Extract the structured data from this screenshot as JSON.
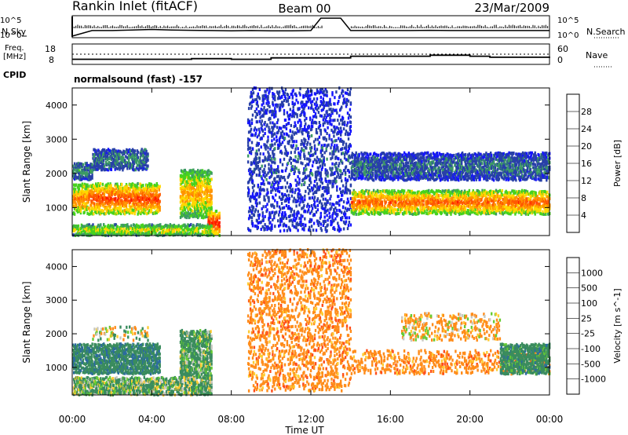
{
  "header": {
    "station": "Rankin Inlet (fitACF)",
    "beam": "Beam 00",
    "date": "23/Mar/2009"
  },
  "strips": {
    "nsky": {
      "label": "N.Sky",
      "top": "10^5",
      "bottom": "10^0"
    },
    "nsearch": {
      "label": "N.Search",
      "top": "10^5",
      "bottom": "10^0"
    },
    "freq": {
      "label1": "Freq.",
      "label2": "[MHz]",
      "top": "18",
      "bottom": "8"
    },
    "nave": {
      "label": "Nave",
      "top": "60",
      "bottom": "0"
    },
    "cpid": {
      "label": "CPID",
      "value": "normalsound (fast) -157"
    }
  },
  "axes": {
    "ylabel": "Slant Range [km]",
    "yticks": [
      "1000",
      "2000",
      "3000",
      "4000"
    ],
    "xticks": [
      "00:00",
      "04:00",
      "08:00",
      "12:00",
      "16:00",
      "20:00",
      "00:00"
    ],
    "xlabel": "Time UT"
  },
  "colorbars": {
    "power": {
      "label": "Power [dB]",
      "labels": [
        "28",
        "24",
        "20",
        "16",
        "12",
        "8",
        "4"
      ],
      "colors": [
        "#ff1a00",
        "#ff5a00",
        "#ff9400",
        "#ffd800",
        "#46d21e",
        "#3c9a64",
        "#2840a8",
        "#1414ff"
      ]
    },
    "velocity": {
      "label": "Velocity [m s^-1]",
      "labels": [
        "1000",
        "500",
        "100",
        "25",
        "-25",
        "-100",
        "-500",
        "-1000"
      ],
      "colors": [
        "#1e3cc8",
        "#2b6aa0",
        "#3a8c5e",
        "#66cc33",
        "#c8c8c0",
        "#ffcc33",
        "#ff8c1a",
        "#ff4d1a",
        "#ee1111"
      ]
    }
  },
  "chart_data": [
    {
      "type": "line",
      "title": "Rankin Inlet (fitACF) Beam 00 23/Mar/2009",
      "xlabel": "Time UT",
      "ylabel": "N.Sky",
      "x": [
        0,
        1,
        2,
        3,
        4,
        5,
        6,
        7,
        8,
        9,
        10,
        11,
        12,
        12.5,
        13,
        13.5,
        14,
        15,
        16,
        17,
        18,
        19,
        20,
        21,
        22,
        23,
        24
      ],
      "series": [
        {
          "name": "N.Sky",
          "values": [
            1,
            30,
            30,
            40,
            60,
            40,
            35,
            30,
            25,
            30,
            25,
            25,
            30,
            60000,
            60000,
            60000,
            30,
            30,
            30,
            30,
            35,
            30,
            30,
            30,
            30,
            30,
            30
          ]
        }
      ]
    },
    {
      "type": "line",
      "xlabel": "Time UT",
      "ylabel": "Freq. [MHz]",
      "ylim": [
        8,
        18
      ],
      "x": [
        0,
        1,
        2,
        4,
        6,
        8,
        9,
        10,
        11,
        12,
        13,
        14,
        15,
        16,
        17,
        18,
        19,
        20,
        21,
        22,
        24
      ],
      "series": [
        {
          "name": "Freq.",
          "values": [
            10.5,
            10.5,
            10.5,
            10.5,
            10.8,
            10.5,
            10.5,
            11.2,
            11.2,
            11.2,
            11.2,
            12.0,
            12.0,
            12.0,
            12.0,
            12.5,
            12.5,
            12.0,
            11.5,
            11.5,
            11.8
          ]
        }
      ]
    },
    {
      "type": "heatmap",
      "ylabel": "Slant Range [km]",
      "xlabel": "Time UT",
      "ylim": [
        180,
        4500
      ],
      "xlim": [
        0,
        24
      ],
      "colorbar": "Power [dB]",
      "zlim": [
        0,
        30
      ],
      "features": [
        {
          "t": [
            0.0,
            0.8
          ],
          "range": [
            800,
            1700
          ],
          "value": 22
        },
        {
          "t": [
            0.8,
            4.4
          ],
          "range": [
            800,
            1700
          ],
          "value": 26
        },
        {
          "t": [
            1.0,
            3.8
          ],
          "range": [
            2100,
            2700
          ],
          "value": 7
        },
        {
          "t": [
            0.0,
            1.0
          ],
          "range": [
            1800,
            2300
          ],
          "value": 8
        },
        {
          "t": [
            5.4,
            7.0
          ],
          "range": [
            700,
            2100
          ],
          "value": 20
        },
        {
          "t": [
            6.8,
            7.4
          ],
          "range": [
            180,
            900
          ],
          "value": 28
        },
        {
          "t": [
            0.0,
            7.0
          ],
          "range": [
            180,
            500
          ],
          "value": 16
        },
        {
          "t": [
            8.8,
            14.0
          ],
          "range": [
            300,
            4500
          ],
          "value": 4
        },
        {
          "t": [
            14.0,
            24.0
          ],
          "range": [
            800,
            1500
          ],
          "value": 24
        },
        {
          "t": [
            14.0,
            24.0
          ],
          "range": [
            1800,
            2600
          ],
          "value": 6
        }
      ]
    },
    {
      "type": "heatmap",
      "ylabel": "Slant Range [km]",
      "xlabel": "Time UT",
      "ylim": [
        180,
        4500
      ],
      "xlim": [
        0,
        24
      ],
      "colorbar": "Velocity [m s^-1]",
      "zlim": [
        -1000,
        1000
      ],
      "features": [
        {
          "t": [
            0.0,
            4.4
          ],
          "range": [
            800,
            1700
          ],
          "value": 400
        },
        {
          "t": [
            1.0,
            3.8
          ],
          "range": [
            1800,
            2200
          ],
          "value": 0
        },
        {
          "t": [
            5.4,
            7.0
          ],
          "range": [
            700,
            2100
          ],
          "value": 200
        },
        {
          "t": [
            0.0,
            7.0
          ],
          "range": [
            180,
            700
          ],
          "value": 150
        },
        {
          "t": [
            8.8,
            14.0
          ],
          "range": [
            300,
            4500
          ],
          "value": -300
        },
        {
          "t": [
            14.0,
            24.0
          ],
          "range": [
            800,
            1500
          ],
          "value": -300
        },
        {
          "t": [
            16.5,
            21.5
          ],
          "range": [
            1800,
            2600
          ],
          "value": -150
        },
        {
          "t": [
            21.5,
            24.0
          ],
          "range": [
            800,
            1700
          ],
          "value": 300
        }
      ]
    }
  ]
}
